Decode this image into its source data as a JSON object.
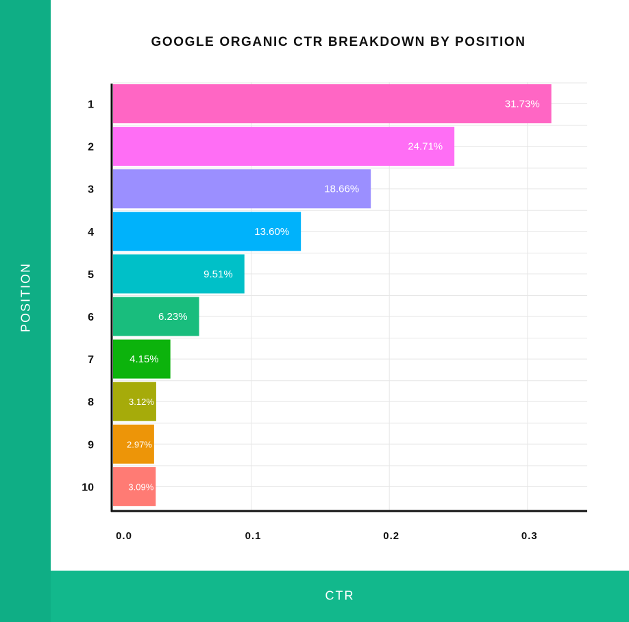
{
  "chart_data": {
    "type": "bar",
    "orientation": "horizontal",
    "title": "GOOGLE ORGANIC CTR BREAKDOWN BY POSITION",
    "xlabel": "CTR",
    "ylabel": "POSITION",
    "categories": [
      "1",
      "2",
      "3",
      "4",
      "5",
      "6",
      "7",
      "8",
      "9",
      "10"
    ],
    "values": [
      0.3173,
      0.2471,
      0.1866,
      0.136,
      0.0951,
      0.0623,
      0.0415,
      0.0312,
      0.0297,
      0.0309
    ],
    "data_labels": [
      "31.73%",
      "24.71%",
      "18.66%",
      "13.60%",
      "9.51%",
      "6.23%",
      "4.15%",
      "3.12%",
      "2.97%",
      "3.09%"
    ],
    "bar_colors": [
      "#ff66c4",
      "#ff6ef5",
      "#9b8fff",
      "#00b2fb",
      "#00c0c8",
      "#19bd7d",
      "#0cb30c",
      "#a6ab0a",
      "#ed9508",
      "#ff7b74"
    ],
    "xticks": [
      0.0,
      0.1,
      0.2,
      0.3
    ],
    "xtick_labels": [
      "0.0",
      "0.1",
      "0.2",
      "0.3"
    ],
    "xlim": [
      0,
      0.345
    ],
    "grid": true,
    "legend": "none"
  },
  "colors": {
    "band_left": "#0fae85",
    "band_bottom": "#12b88c",
    "axis": "#111111",
    "grid": "#e6e6e6"
  }
}
